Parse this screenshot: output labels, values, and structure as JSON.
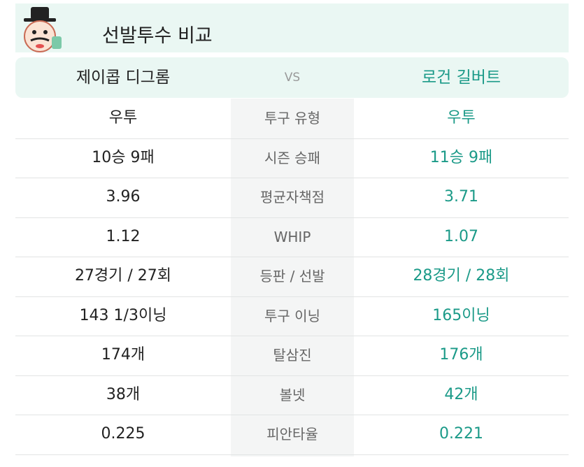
{
  "header": {
    "title": "선발투수 비교"
  },
  "table": {
    "players": {
      "left": "제이콥 디그롬",
      "vs": "VS",
      "right": "로건 길버트"
    },
    "rows": [
      [
        "우투",
        "투구 유형",
        "우투"
      ],
      [
        "10승 9패",
        "시즌 승패",
        "11승 9패"
      ],
      [
        "3.96",
        "평균자책점",
        "3.71"
      ],
      [
        "1.12",
        "WHIP",
        "1.07"
      ],
      [
        "27경기 / 27회",
        "등판 / 선발",
        "28경기 / 28회"
      ],
      [
        "143 1/3이닝",
        "투구 이닝",
        "165이닝"
      ],
      [
        "174개",
        "탈삼진",
        "176개"
      ],
      [
        "38개",
        "볼넷",
        "42개"
      ],
      [
        "0.225",
        "피안타율",
        "0.221"
      ]
    ]
  }
}
